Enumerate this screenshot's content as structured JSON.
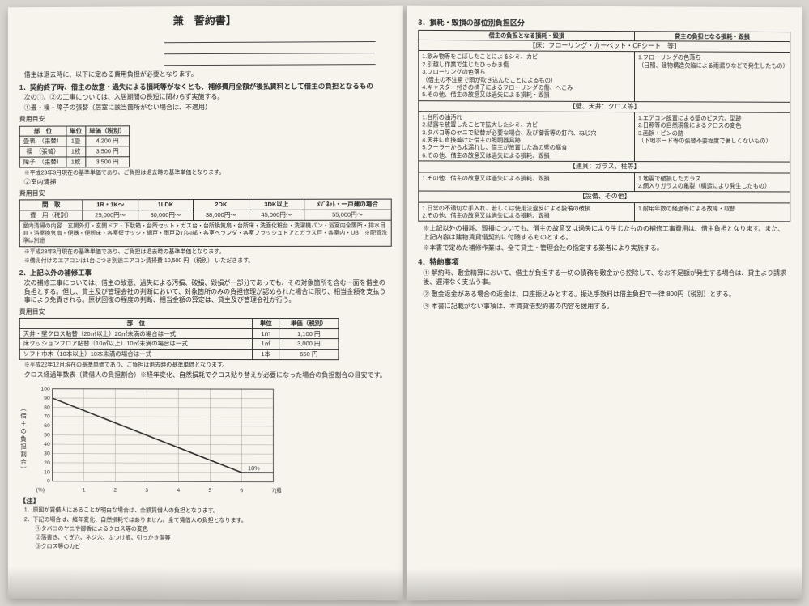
{
  "left": {
    "title": "兼　誓約書】",
    "intro": "借主は退去時に、以下に定める費用負担が必要となります。",
    "s1": {
      "heading": "1．契約終了時、借主の故意・過失による損耗等がなくとも、補修費用全額が後払賃料として借主の負担となるもの",
      "note1": "次の①、②の工事については、入居期間の長短に関わらず実施する。",
      "note2": "①畳・襖・障子の張替（居室に該当箇所がない場合は、不適用）",
      "table1_head": "費用目安",
      "table1": {
        "cols": [
          "部　位",
          "単位",
          "単価（税別）"
        ],
        "rows": [
          [
            "畳表　（張替）",
            "1畳",
            "4,200 円"
          ],
          [
            "襖　（張替）",
            "1枚",
            "3,500 円"
          ],
          [
            "障子　（張替）",
            "1枚",
            "3,500 円"
          ]
        ]
      },
      "table1_foot": "※平成23年3月現在の基準単価であり、ご負担は退去時の基準単価となります。",
      "note3": "②室内清掃",
      "table2_head": "費用目安",
      "table2": {
        "cols": [
          "間　取",
          "1R・1K～",
          "1LDK",
          "2DK",
          "3DK以上",
          "ﾒｿﾞﾈｯﾄ・一戸建の場合"
        ],
        "row": [
          "費　用（税別）",
          "25,000円～",
          "30,000円～",
          "38,000円～",
          "45,000円～",
          "55,000円～"
        ],
        "body": "室内清掃の内容　玄関外灯・玄関ドア・下駄箱・台所セット・ガス台・台所換気扇・台所床・洗面化粧台・洗濯機パン・浴室内全箇所・排水目皿・浴室換気扇・便器・便所床・各室壁サッシ・網戸・雨戸及び内部・各室ベランダ・各室フラッシュドアとガラス戸・各室内・UB　※配管洗浄は別途"
      },
      "table2_foot1": "※平成23年3月現在の基準単価であり、ご負担は退去時の基準単価となります。",
      "table2_foot2": "※備え付けのエアコンは1台につき別途エアコン清掃費 10,500 円 （税別） いただきます。"
    },
    "s2": {
      "heading": "2．上記以外の補修工事",
      "body": "次の補修工事については、借主の故意、過失による汚損、破損、毀損が一部分であっても、その対象箇所を含む一面を借主の負担とする。但し、貸主及び管理会社の判断において、対象箇所のみの負担修理が認められた場合に限り、相当金額を支払う事により免責される。原状回復の程度の判断、相当金額の算定は、貸主及び管理会社が行う。",
      "table3_head": "費用目安",
      "table3": {
        "cols": [
          "部　位",
          "単位",
          "単価（税別）"
        ],
        "rows": [
          [
            "天井・壁クロス貼替（20㎡以上）20㎡未満の場合は一式",
            "1ｍ",
            "1,100 円"
          ],
          [
            "床クッションフロア貼替（10㎡以上）10㎡未満の場合は一式",
            "1㎡",
            "3,000 円"
          ],
          [
            "ソフト巾木（10本以上）10本未満の場合は一式",
            "1本",
            "650 円"
          ]
        ]
      },
      "table3_foot": "※平成22年12月現在の基準単価であり、ご負担は退去時の基準単価となります。"
    },
    "chart": {
      "caption": "クロス経過年数表（賃借人の負担割合）※経年変化、自然損耗でクロス貼り替えが必要になった場合の負担割合の目安です。",
      "ylabel": "（借主の負担割合）",
      "y_ticks": [
        100,
        90,
        80,
        70,
        60,
        50,
        40,
        30,
        20,
        10,
        0
      ],
      "x_ticks": [
        "(%)",
        "1",
        "2",
        "3",
        "4",
        "5",
        "6",
        "7",
        "(経年)"
      ],
      "points": [
        {
          "x": 0,
          "y": 90
        },
        {
          "x": 6,
          "y": 10
        },
        {
          "x": 7,
          "y": 10
        }
      ],
      "label_inside": "10%",
      "line_color": "#2b2b2b",
      "grid_color": "#a5a09a",
      "background": "#f7f3ed",
      "line_width": 1.6,
      "xlim": [
        0,
        7
      ],
      "ylim": [
        0,
        100
      ]
    },
    "notes_heading": "【注】",
    "notes": [
      "1．原因が賃借人にあることが明白な場合は、全額賃借人の負担となります。",
      "2．下記の場合は、経年変化、自然損耗ではありません。全て賃借人の負担となります。",
      "　　①タバコのヤニや御香によるクロス等の変色",
      "　　②落書き、くぎ穴、ネジ穴、ぶつけ痕、引っかき傷等",
      "　　③クロス等のカビ"
    ]
  },
  "right": {
    "heading3": "3．損耗・毀損の部位別負担区分",
    "col_left": "借主の負担となる損耗・毀損",
    "col_right": "貸主の負担となる損耗・毀損",
    "cat_floor": "【床：フローリング・カーペット・CFシート　等】",
    "floor_left": [
      "1.飲み物等をこぼしたことによるシミ、カビ",
      "2.引越し作業で生じたひっかき傷",
      "3.フローリングの色落ち",
      "（借主の不注意で雨が吹き込んだことによるもの）",
      "4.キャスター付きの椅子によるフローリングの傷、へこみ",
      "5.その他、借主の故意又は過失による損耗・毀損"
    ],
    "floor_right": [
      "1.フローリングの色落ち",
      "（日照、建物構造欠陥による雨漏りなどで発生したもの）"
    ],
    "cat_wall": "【壁、天井：クロス等】",
    "wall_left": [
      "1.台所の油汚れ",
      "2.結露を放置したことで拡大したシミ、カビ",
      "3.タバコ等のヤニで貼替が必要な場合、及び御香等の釘穴、ねじ穴",
      "4.天井に直接着けた借主の照明器具跡",
      "5.クーラーから水漏れし、借主が放置した為の壁の腐食",
      "6.その他、借主の故意又は過失による損耗、毀損"
    ],
    "wall_right": [
      "1.エアコン設置による壁のビス穴、型跡",
      "2.日照等の自然現象によるクロスの変色",
      "3.画鋲・ピンの跡",
      "（下地ボード等の張替不要程度で著しくないもの）"
    ],
    "cat_tategu": "【建具：ガラス、柱等】",
    "tategu_left": [
      "1.その他、借主の故意又は過失による損耗、毀損"
    ],
    "tategu_right": [
      "1.地震で破損したガラス",
      "2.網入りガラスの亀裂（構造により発生したもの）"
    ],
    "cat_setsubi": "【設備、その他】",
    "setsubi_left": [
      "1.日常の不適切な手入れ、若しくは使用法違反による設備の破損",
      "2.その他、借主の故意又は過失による損耗、毀損"
    ],
    "setsubi_right": [
      "1.耐用年数の経過等による故障・取替"
    ],
    "after1": "※上記以外の損耗、毀損についても、借主の故意又は過失により生じたものの補修工事費用は、借主負担となります。また、上記内容は建物賃貸借契約に付随するものとする。",
    "after2": "※本書で定めた補修作業は、全て貸主・管理会社の指定する業者により実施する。",
    "heading4": "4．特約事項",
    "s4_1": "① 解約時、敷金精算において、借主が負担する一切の債務を敷金から控除して、なお不足額が発生する場合は、貸主より請求後、遅滞なく支払う事。",
    "s4_2": "② 敷金返金がある場合の返金は、口座振込みとする。振込手数料は借主負担で一律 800円（税別）とする。",
    "s4_3": "③ 本書に記載がない事項は、本賃貸借契約書の内容を援用する。"
  }
}
